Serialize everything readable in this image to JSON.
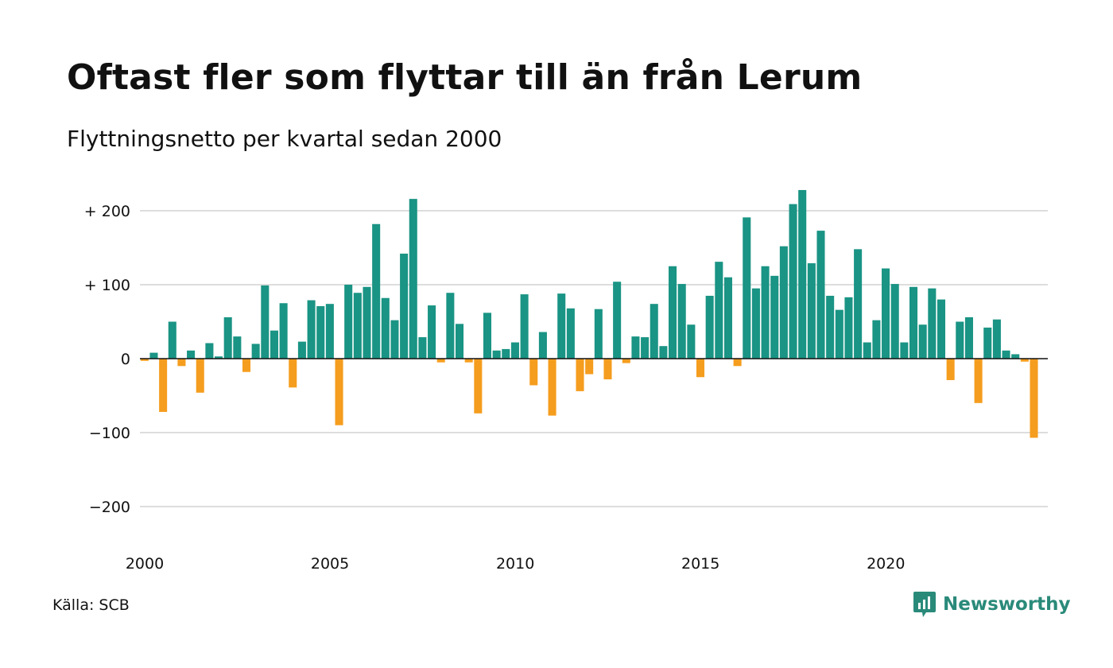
{
  "title": "Oftast fler som flyttar till än från Lerum",
  "subtitle": "Flyttningsnetto per kvartal sedan 2000",
  "source": "Källa: SCB",
  "brand": "Newsworthy",
  "colors": {
    "positive": "#1a9484",
    "negative": "#f59d1e",
    "grid": "#dddddd",
    "zero": "#111111",
    "brand": "#2a8a7a"
  },
  "chart_data": {
    "type": "bar",
    "x_start": 2000,
    "periods_per_year": 4,
    "ylim": [
      -250,
      250
    ],
    "yticks": [
      {
        "value": 200,
        "label": "+ 200"
      },
      {
        "value": 100,
        "label": "+ 100"
      },
      {
        "value": 0,
        "label": "0"
      },
      {
        "value": -100,
        "label": "−100"
      },
      {
        "value": -200,
        "label": "−200"
      }
    ],
    "xticks": [
      {
        "value": 2000,
        "label": "2000"
      },
      {
        "value": 2005,
        "label": "2005"
      },
      {
        "value": 2010,
        "label": "2010"
      },
      {
        "value": 2015,
        "label": "2015"
      },
      {
        "value": 2020,
        "label": "2020"
      }
    ],
    "values": [
      -3,
      8,
      -72,
      50,
      -10,
      11,
      -46,
      21,
      3,
      56,
      30,
      -18,
      20,
      99,
      38,
      75,
      -39,
      23,
      79,
      71,
      74,
      -90,
      100,
      89,
      97,
      182,
      82,
      52,
      142,
      216,
      29,
      72,
      -5,
      89,
      47,
      -5,
      -74,
      62,
      11,
      13,
      22,
      87,
      -36,
      36,
      -77,
      88,
      68,
      -44,
      -21,
      67,
      -28,
      104,
      -6,
      30,
      29,
      74,
      17,
      125,
      101,
      46,
      -25,
      85,
      131,
      110,
      -10,
      191,
      95,
      125,
      112,
      152,
      209,
      228,
      129,
      173,
      85,
      66,
      83,
      148,
      22,
      52,
      122,
      101,
      22,
      97,
      46,
      95,
      80,
      -29,
      50,
      56,
      -60,
      42,
      53,
      11,
      6,
      -4,
      -107
    ]
  }
}
